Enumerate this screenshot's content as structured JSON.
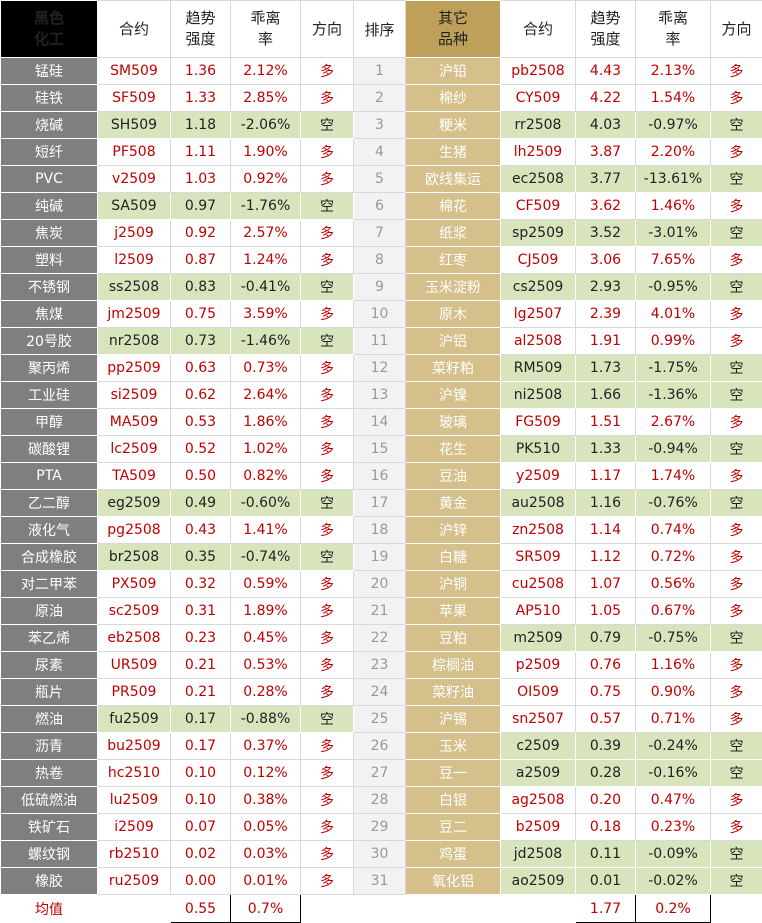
{
  "left": {
    "headers": [
      "黑色化工",
      "合约",
      "趋势强度",
      "乖离率",
      "方向"
    ],
    "rows": [
      [
        "锰硅",
        "SM509",
        "1.36",
        "2.12%",
        "多"
      ],
      [
        "硅铁",
        "SF509",
        "1.33",
        "2.85%",
        "多"
      ],
      [
        "烧碱",
        "SH509",
        "1.18",
        "-2.06%",
        "空"
      ],
      [
        "短纤",
        "PF508",
        "1.11",
        "1.90%",
        "多"
      ],
      [
        "PVC",
        "v2509",
        "1.03",
        "0.92%",
        "多"
      ],
      [
        "纯碱",
        "SA509",
        "0.97",
        "-1.76%",
        "空"
      ],
      [
        "焦炭",
        "j2509",
        "0.92",
        "2.57%",
        "多"
      ],
      [
        "塑料",
        "l2509",
        "0.87",
        "1.24%",
        "多"
      ],
      [
        "不锈钢",
        "ss2508",
        "0.83",
        "-0.41%",
        "空"
      ],
      [
        "焦煤",
        "jm2509",
        "0.75",
        "3.59%",
        "多"
      ],
      [
        "20号胶",
        "nr2508",
        "0.73",
        "-1.46%",
        "空"
      ],
      [
        "聚丙烯",
        "pp2509",
        "0.63",
        "0.73%",
        "多"
      ],
      [
        "工业硅",
        "si2509",
        "0.62",
        "2.64%",
        "多"
      ],
      [
        "甲醇",
        "MA509",
        "0.53",
        "1.86%",
        "多"
      ],
      [
        "碳酸锂",
        "lc2509",
        "0.52",
        "1.02%",
        "多"
      ],
      [
        "PTA",
        "TA509",
        "0.50",
        "0.82%",
        "多"
      ],
      [
        "乙二醇",
        "eg2509",
        "0.49",
        "-0.60%",
        "空"
      ],
      [
        "液化气",
        "pg2508",
        "0.43",
        "1.41%",
        "多"
      ],
      [
        "合成橡胶",
        "br2508",
        "0.35",
        "-0.74%",
        "空"
      ],
      [
        "对二甲苯",
        "PX509",
        "0.32",
        "0.59%",
        "多"
      ],
      [
        "原油",
        "sc2509",
        "0.31",
        "1.89%",
        "多"
      ],
      [
        "苯乙烯",
        "eb2508",
        "0.23",
        "0.45%",
        "多"
      ],
      [
        "尿素",
        "UR509",
        "0.21",
        "0.53%",
        "多"
      ],
      [
        "瓶片",
        "PR509",
        "0.21",
        "0.28%",
        "多"
      ],
      [
        "燃油",
        "fu2509",
        "0.17",
        "-0.88%",
        "空"
      ],
      [
        "沥青",
        "bu2509",
        "0.17",
        "0.37%",
        "多"
      ],
      [
        "热卷",
        "hc2510",
        "0.10",
        "0.12%",
        "多"
      ],
      [
        "低硫燃油",
        "lu2509",
        "0.10",
        "0.38%",
        "多"
      ],
      [
        "铁矿石",
        "i2509",
        "0.07",
        "0.05%",
        "多"
      ],
      [
        "螺纹钢",
        "rb2510",
        "0.02",
        "0.03%",
        "多"
      ],
      [
        "橡胶",
        "ru2509",
        "0.00",
        "0.01%",
        "多"
      ]
    ],
    "row_colors": [
      "#ffffff",
      "#ffffff",
      "#d8e4bc",
      "#ffffff",
      "#ffffff",
      "#d8e4bc",
      "#ffffff",
      "#ffffff",
      "#d8e4bc",
      "#ffffff",
      "#d8e4bc",
      "#ffffff",
      "#ffffff",
      "#ffffff",
      "#ffffff",
      "#ffffff",
      "#d8e4bc",
      "#ffffff",
      "#d8e4bc",
      "#ffffff",
      "#ffffff",
      "#ffffff",
      "#ffffff",
      "#ffffff",
      "#d8e4bc",
      "#ffffff",
      "#ffffff",
      "#ffffff",
      "#ffffff",
      "#ffffff",
      "#ffffff"
    ]
  },
  "rank_header": "排序",
  "ranks": [
    "1",
    "2",
    "3",
    "4",
    "5",
    "6",
    "7",
    "8",
    "9",
    "10",
    "11",
    "12",
    "13",
    "14",
    "15",
    "16",
    "17",
    "18",
    "19",
    "20",
    "21",
    "22",
    "23",
    "24",
    "25",
    "26",
    "27",
    "28",
    "29",
    "30",
    "31"
  ],
  "right": {
    "headers": [
      "其它品种",
      "合约",
      "趋势强度",
      "乖离率",
      "方向"
    ],
    "rows": [
      [
        "沪铅",
        "pb2508",
        "4.43",
        "2.13%",
        "多"
      ],
      [
        "棉纱",
        "CY509",
        "4.22",
        "1.54%",
        "多"
      ],
      [
        "粳米",
        "rr2508",
        "4.03",
        "-0.97%",
        "空"
      ],
      [
        "生猪",
        "lh2509",
        "3.87",
        "2.20%",
        "多"
      ],
      [
        "欧线集运",
        "ec2508",
        "3.77",
        "-13.61%",
        "空"
      ],
      [
        "棉花",
        "CF509",
        "3.62",
        "1.46%",
        "多"
      ],
      [
        "纸浆",
        "sp2509",
        "3.52",
        "-3.01%",
        "空"
      ],
      [
        "红枣",
        "CJ509",
        "3.06",
        "7.65%",
        "多"
      ],
      [
        "玉米淀粉",
        "cs2509",
        "2.93",
        "-0.95%",
        "空"
      ],
      [
        "原木",
        "lg2507",
        "2.39",
        "4.01%",
        "多"
      ],
      [
        "沪铝",
        "al2508",
        "1.91",
        "0.99%",
        "多"
      ],
      [
        "菜籽粕",
        "RM509",
        "1.73",
        "-1.75%",
        "空"
      ],
      [
        "沪镍",
        "ni2508",
        "1.66",
        "-1.36%",
        "空"
      ],
      [
        "玻璃",
        "FG509",
        "1.51",
        "2.67%",
        "多"
      ],
      [
        "花生",
        "PK510",
        "1.33",
        "-0.94%",
        "空"
      ],
      [
        "豆油",
        "y2509",
        "1.17",
        "1.74%",
        "多"
      ],
      [
        "黄金",
        "au2508",
        "1.16",
        "-0.76%",
        "空"
      ],
      [
        "沪锌",
        "zn2508",
        "1.14",
        "0.74%",
        "多"
      ],
      [
        "白糖",
        "SR509",
        "1.12",
        "0.72%",
        "多"
      ],
      [
        "沪铜",
        "cu2508",
        "1.07",
        "0.56%",
        "多"
      ],
      [
        "苹果",
        "AP510",
        "1.05",
        "0.67%",
        "多"
      ],
      [
        "豆粕",
        "m2509",
        "0.79",
        "-0.75%",
        "空"
      ],
      [
        "棕榈油",
        "p2509",
        "0.76",
        "1.16%",
        "多"
      ],
      [
        "菜籽油",
        "OI509",
        "0.75",
        "0.90%",
        "多"
      ],
      [
        "沪锡",
        "sn2507",
        "0.57",
        "0.71%",
        "多"
      ],
      [
        "玉米",
        "c2509",
        "0.39",
        "-0.24%",
        "空"
      ],
      [
        "豆一",
        "a2509",
        "0.28",
        "-0.16%",
        "空"
      ],
      [
        "白银",
        "ag2508",
        "0.20",
        "0.47%",
        "多"
      ],
      [
        "豆二",
        "b2509",
        "0.18",
        "0.23%",
        "多"
      ],
      [
        "鸡蛋",
        "jd2508",
        "0.11",
        "-0.09%",
        "空"
      ],
      [
        "氧化铝",
        "ao2509",
        "0.01",
        "-0.02%",
        "空"
      ]
    ],
    "row_colors": [
      "#ffffff",
      "#ffffff",
      "#d8e4bc",
      "#ffffff",
      "#d8e4bc",
      "#ffffff",
      "#d8e4bc",
      "#ffffff",
      "#d8e4bc",
      "#ffffff",
      "#ffffff",
      "#d8e4bc",
      "#d8e4bc",
      "#ffffff",
      "#d8e4bc",
      "#ffffff",
      "#d8e4bc",
      "#ffffff",
      "#ffffff",
      "#ffffff",
      "#ffffff",
      "#d8e4bc",
      "#ffffff",
      "#ffffff",
      "#ffffff",
      "#d8e4bc",
      "#d8e4bc",
      "#ffffff",
      "#ffffff",
      "#d8e4bc",
      "#d8e4bc"
    ]
  },
  "footer": {
    "label": "均值",
    "left": [
      "0.55",
      "0.7%"
    ],
    "right": [
      "1.77",
      "0.2%"
    ]
  }
}
